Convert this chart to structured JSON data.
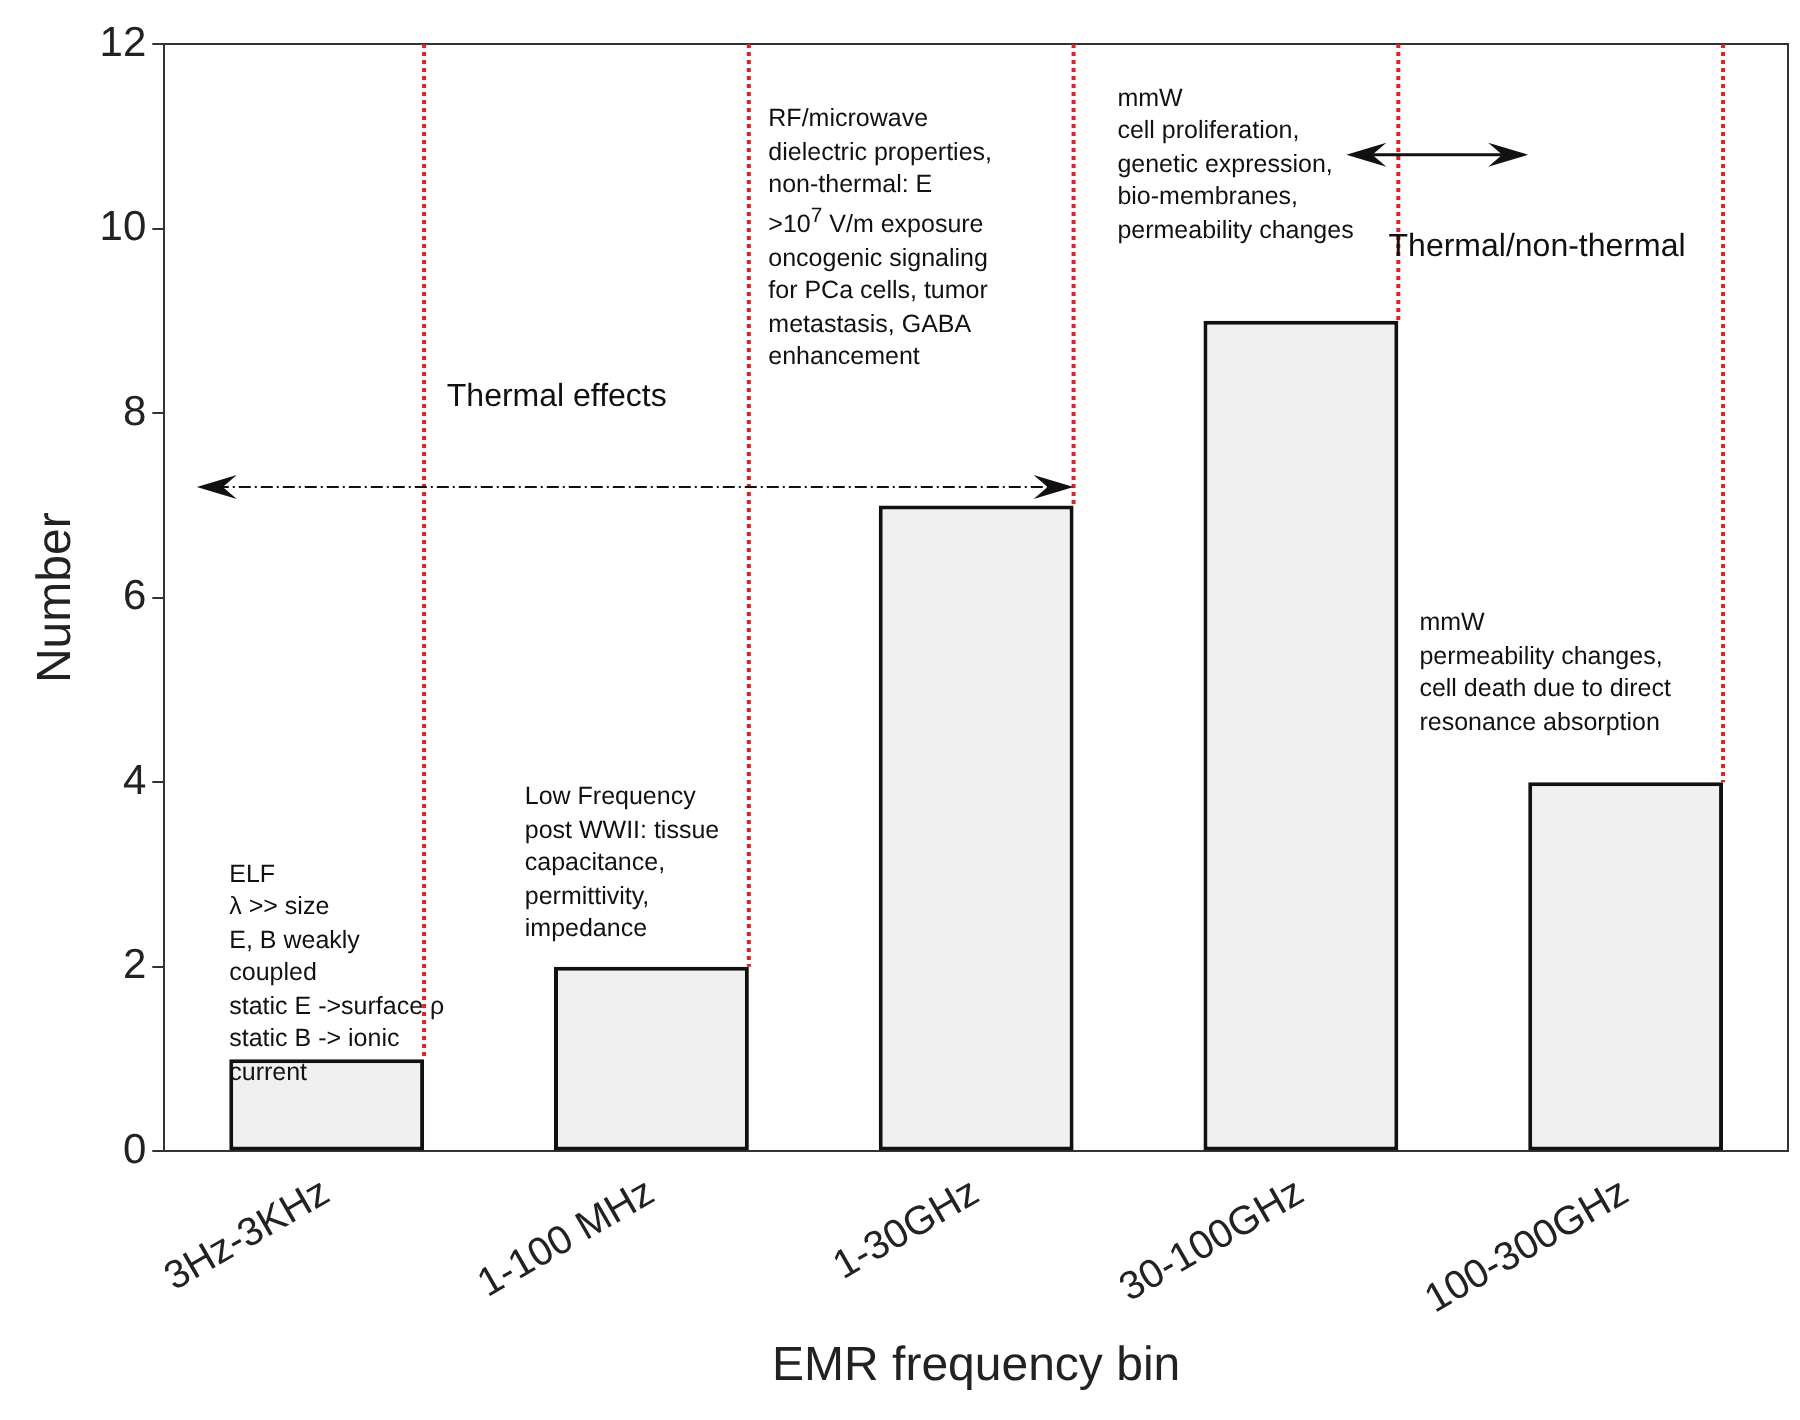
{
  "chart_data": {
    "type": "bar",
    "xlabel": "EMR frequency bin",
    "ylabel": "Number",
    "categories": [
      "3Hz-3KHz",
      "1-100 MHz",
      "1-30GHz",
      "30-100GHz",
      "100-300GHz"
    ],
    "values": [
      1,
      2,
      7,
      9,
      4
    ],
    "color": "#f0f0f0",
    "ref_lines": [
      {
        "axis": "x",
        "value": "3Hz-3KHz",
        "color": "#dd2222",
        "line_style": "dotted"
      },
      {
        "axis": "x",
        "value": "1-100 MHz",
        "color": "#dd2222",
        "line_style": "dotted"
      },
      {
        "axis": "x",
        "value": "1-30GHz",
        "color": "#dd2222",
        "line_style": "dotted"
      },
      {
        "axis": "x",
        "value": "30-100GHz",
        "color": "#dd2222",
        "line_style": "dotted"
      },
      {
        "axis": "x",
        "value": "100-300GHz",
        "color": "#dd2222",
        "line_style": "dotted"
      }
    ],
    "ylim": [
      0,
      12
    ],
    "yticks": [
      0,
      2,
      4,
      6,
      8,
      10,
      12
    ],
    "grid": false,
    "legend": false,
    "annotations": [
      "ELF\nλ >> size\nE, B weakly\ncoupled\nstatic E ->surface ρ\nstatic B -> ionic\ncurrent",
      "Low Frequency\npost WWII: tissue\ncapacitance,\npermittivity,\nimpedance",
      "RF/microwave\ndielectric properties,\nnon-thermal: E\n>10$^{7}$ V/m exposure\noncogenic signaling\nfor PCa cells, tumor\nmetastasis, GABA\nenhancement",
      "mmW\ncell proliferation,\ngenetic expression,\nbio-membranes,\npermeability changes",
      "Thermal effects",
      "Thermal/non-thermal",
      "mmW\npermeability changes,\ncell death due to direct\nresonance absorption"
    ]
  }
}
